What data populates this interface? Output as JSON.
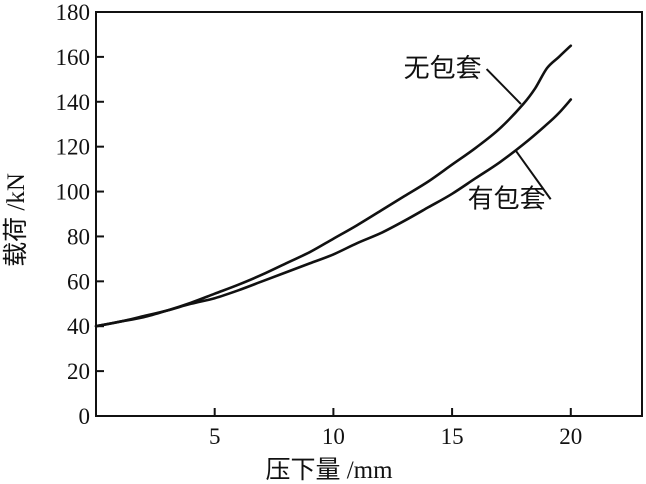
{
  "chart_data": {
    "type": "line",
    "title": "",
    "xlabel": "压下量 /mm",
    "ylabel": "载荷 /kN",
    "xlim": [
      0,
      23
    ],
    "ylim": [
      0,
      180
    ],
    "x_ticks": [
      5,
      10,
      15,
      20
    ],
    "y_ticks": [
      0,
      20,
      40,
      60,
      80,
      100,
      120,
      140,
      160,
      180
    ],
    "grid": false,
    "legend": "none",
    "line_color": "#111111",
    "series": [
      {
        "name": "无包套",
        "x": [
          0,
          1,
          2,
          3,
          4,
          5,
          6,
          7,
          8,
          9,
          10,
          11,
          12,
          13,
          14,
          15,
          16,
          17,
          18,
          18.5,
          19,
          19.5,
          20
        ],
        "y": [
          40,
          42,
          44,
          47,
          50.5,
          54.5,
          58.5,
          63,
          68,
          73,
          79,
          85,
          91.5,
          98,
          104.5,
          112,
          119.5,
          128,
          139,
          146,
          155,
          160,
          165
        ]
      },
      {
        "name": "有包套",
        "x": [
          0,
          1,
          2,
          3,
          4,
          5,
          6,
          7,
          8,
          9,
          10,
          11,
          12,
          13,
          14,
          15,
          16,
          17,
          18,
          19,
          19.5,
          20
        ],
        "y": [
          40,
          42,
          44.5,
          47,
          50,
          52.5,
          56,
          60,
          64,
          68,
          72,
          77,
          81.5,
          87,
          93,
          99,
          106,
          113,
          121,
          130,
          135,
          141
        ]
      }
    ],
    "annotations": [
      {
        "text": "无包套",
        "series": "无包套",
        "at_x": 17.9,
        "at_y": 139,
        "text_x": 14.6,
        "text_y": 151
      },
      {
        "text": "有包套",
        "series": "有包套",
        "at_x": 17.7,
        "at_y": 118,
        "text_x": 17.3,
        "text_y": 93
      }
    ]
  }
}
